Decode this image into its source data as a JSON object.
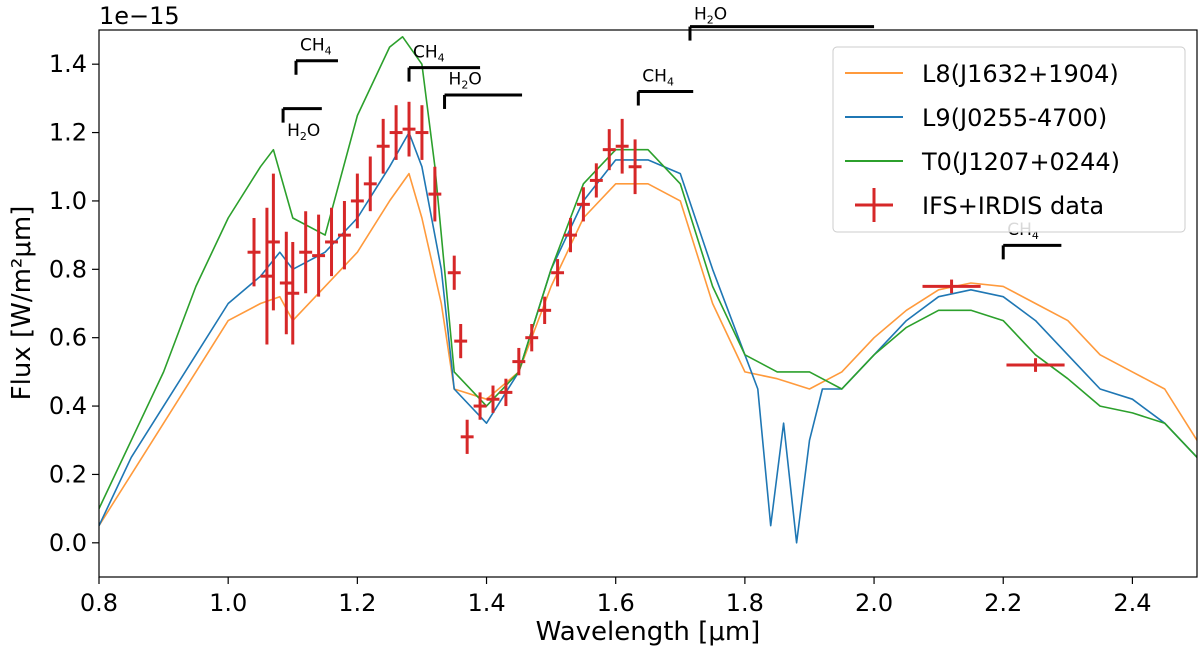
{
  "chart_data": {
    "type": "line",
    "title": "",
    "xlabel": "Wavelength [μm]",
    "ylabel": "Flux [W/m²μm]",
    "offset_text": "1e−15",
    "xlim": [
      0.8,
      2.5
    ],
    "ylim": [
      -0.1,
      1.5
    ],
    "xticks": [
      0.8,
      1.0,
      1.2,
      1.4,
      1.6,
      1.8,
      2.0,
      2.2,
      2.4
    ],
    "yticks": [
      0.0,
      0.2,
      0.4,
      0.6,
      0.8,
      1.0,
      1.2,
      1.4
    ],
    "legend_position": "top-right",
    "series": [
      {
        "name": "L8(J1632+1904)",
        "color": "#ff9a3c",
        "x": [
          0.8,
          0.85,
          0.9,
          0.95,
          1.0,
          1.05,
          1.08,
          1.1,
          1.15,
          1.2,
          1.25,
          1.28,
          1.3,
          1.33,
          1.35,
          1.4,
          1.45,
          1.5,
          1.55,
          1.6,
          1.65,
          1.7,
          1.75,
          1.8,
          1.85,
          1.9,
          1.95,
          2.0,
          2.05,
          2.1,
          2.15,
          2.2,
          2.25,
          2.3,
          2.35,
          2.4,
          2.45,
          2.5
        ],
        "y": [
          0.05,
          0.2,
          0.35,
          0.5,
          0.65,
          0.7,
          0.72,
          0.65,
          0.75,
          0.85,
          1.0,
          1.08,
          0.95,
          0.7,
          0.45,
          0.42,
          0.5,
          0.75,
          0.95,
          1.05,
          1.05,
          1.0,
          0.7,
          0.5,
          0.48,
          0.45,
          0.5,
          0.6,
          0.68,
          0.74,
          0.76,
          0.75,
          0.7,
          0.65,
          0.55,
          0.5,
          0.45,
          0.3
        ]
      },
      {
        "name": "L9(J0255-4700)",
        "color": "#1f77b4",
        "x": [
          0.8,
          0.85,
          0.9,
          0.95,
          1.0,
          1.05,
          1.08,
          1.1,
          1.15,
          1.2,
          1.25,
          1.28,
          1.3,
          1.33,
          1.35,
          1.4,
          1.45,
          1.5,
          1.55,
          1.6,
          1.65,
          1.7,
          1.75,
          1.8,
          1.82,
          1.84,
          1.86,
          1.88,
          1.9,
          1.92,
          1.95,
          2.0,
          2.05,
          2.1,
          2.15,
          2.2,
          2.25,
          2.3,
          2.35,
          2.4,
          2.45,
          2.5
        ],
        "y": [
          0.05,
          0.25,
          0.4,
          0.55,
          0.7,
          0.78,
          0.85,
          0.8,
          0.85,
          0.95,
          1.1,
          1.2,
          1.1,
          0.8,
          0.45,
          0.35,
          0.5,
          0.8,
          1.0,
          1.12,
          1.12,
          1.08,
          0.8,
          0.55,
          0.45,
          0.05,
          0.35,
          0.0,
          0.3,
          0.45,
          0.45,
          0.55,
          0.65,
          0.72,
          0.74,
          0.72,
          0.65,
          0.55,
          0.45,
          0.42,
          0.35,
          0.25
        ]
      },
      {
        "name": "T0(J1207+0244)",
        "color": "#2ca02c",
        "x": [
          0.8,
          0.85,
          0.9,
          0.95,
          1.0,
          1.05,
          1.07,
          1.1,
          1.15,
          1.2,
          1.25,
          1.27,
          1.3,
          1.32,
          1.35,
          1.4,
          1.45,
          1.5,
          1.55,
          1.6,
          1.65,
          1.7,
          1.75,
          1.8,
          1.85,
          1.9,
          1.95,
          2.0,
          2.05,
          2.1,
          2.15,
          2.2,
          2.25,
          2.3,
          2.35,
          2.4,
          2.45,
          2.5
        ],
        "y": [
          0.1,
          0.3,
          0.5,
          0.75,
          0.95,
          1.1,
          1.15,
          0.95,
          0.9,
          1.25,
          1.45,
          1.48,
          1.4,
          1.1,
          0.5,
          0.4,
          0.5,
          0.8,
          1.05,
          1.15,
          1.15,
          1.05,
          0.75,
          0.55,
          0.5,
          0.5,
          0.45,
          0.55,
          0.63,
          0.68,
          0.68,
          0.65,
          0.55,
          0.48,
          0.4,
          0.38,
          0.35,
          0.25
        ]
      }
    ],
    "errorbar_series": {
      "name": "IFS+IRDIS data",
      "color": "#d62728",
      "points": [
        {
          "x": 1.04,
          "y": 0.85,
          "xerr": 0.01,
          "yerr": 0.1
        },
        {
          "x": 1.06,
          "y": 0.78,
          "xerr": 0.01,
          "yerr": 0.2
        },
        {
          "x": 1.07,
          "y": 0.88,
          "xerr": 0.01,
          "yerr": 0.2
        },
        {
          "x": 1.09,
          "y": 0.76,
          "xerr": 0.01,
          "yerr": 0.15
        },
        {
          "x": 1.1,
          "y": 0.73,
          "xerr": 0.01,
          "yerr": 0.15
        },
        {
          "x": 1.12,
          "y": 0.85,
          "xerr": 0.01,
          "yerr": 0.12
        },
        {
          "x": 1.14,
          "y": 0.84,
          "xerr": 0.01,
          "yerr": 0.12
        },
        {
          "x": 1.16,
          "y": 0.88,
          "xerr": 0.01,
          "yerr": 0.1
        },
        {
          "x": 1.18,
          "y": 0.9,
          "xerr": 0.01,
          "yerr": 0.1
        },
        {
          "x": 1.2,
          "y": 1.0,
          "xerr": 0.01,
          "yerr": 0.08
        },
        {
          "x": 1.22,
          "y": 1.05,
          "xerr": 0.01,
          "yerr": 0.08
        },
        {
          "x": 1.24,
          "y": 1.16,
          "xerr": 0.01,
          "yerr": 0.08
        },
        {
          "x": 1.26,
          "y": 1.2,
          "xerr": 0.01,
          "yerr": 0.08
        },
        {
          "x": 1.28,
          "y": 1.21,
          "xerr": 0.01,
          "yerr": 0.08
        },
        {
          "x": 1.3,
          "y": 1.2,
          "xerr": 0.01,
          "yerr": 0.08
        },
        {
          "x": 1.32,
          "y": 1.02,
          "xerr": 0.01,
          "yerr": 0.08
        },
        {
          "x": 1.35,
          "y": 0.79,
          "xerr": 0.01,
          "yerr": 0.05
        },
        {
          "x": 1.36,
          "y": 0.59,
          "xerr": 0.01,
          "yerr": 0.05
        },
        {
          "x": 1.37,
          "y": 0.31,
          "xerr": 0.01,
          "yerr": 0.05
        },
        {
          "x": 1.39,
          "y": 0.4,
          "xerr": 0.01,
          "yerr": 0.04
        },
        {
          "x": 1.41,
          "y": 0.42,
          "xerr": 0.01,
          "yerr": 0.04
        },
        {
          "x": 1.43,
          "y": 0.44,
          "xerr": 0.01,
          "yerr": 0.04
        },
        {
          "x": 1.45,
          "y": 0.53,
          "xerr": 0.01,
          "yerr": 0.04
        },
        {
          "x": 1.47,
          "y": 0.6,
          "xerr": 0.01,
          "yerr": 0.04
        },
        {
          "x": 1.49,
          "y": 0.68,
          "xerr": 0.01,
          "yerr": 0.04
        },
        {
          "x": 1.51,
          "y": 0.79,
          "xerr": 0.01,
          "yerr": 0.04
        },
        {
          "x": 1.53,
          "y": 0.9,
          "xerr": 0.01,
          "yerr": 0.05
        },
        {
          "x": 1.55,
          "y": 0.99,
          "xerr": 0.01,
          "yerr": 0.05
        },
        {
          "x": 1.57,
          "y": 1.06,
          "xerr": 0.01,
          "yerr": 0.05
        },
        {
          "x": 1.59,
          "y": 1.15,
          "xerr": 0.01,
          "yerr": 0.06
        },
        {
          "x": 1.61,
          "y": 1.16,
          "xerr": 0.01,
          "yerr": 0.08
        },
        {
          "x": 1.63,
          "y": 1.1,
          "xerr": 0.01,
          "yerr": 0.08
        },
        {
          "x": 2.12,
          "y": 0.75,
          "xerr": 0.045,
          "yerr": 0.02
        },
        {
          "x": 2.25,
          "y": 0.52,
          "xerr": 0.045,
          "yerr": 0.02
        }
      ]
    },
    "annotations": [
      {
        "label_main": "H",
        "label_sub": "2",
        "label_tail": "O",
        "x0": 1.085,
        "x1": 1.145,
        "y": 1.27,
        "tick": "down",
        "label_y": 1.19
      },
      {
        "label_main": "CH",
        "label_sub": "4",
        "label_tail": "",
        "x0": 1.105,
        "x1": 1.17,
        "y": 1.41,
        "tick": "down",
        "label_y": 1.44
      },
      {
        "label_main": "CH",
        "label_sub": "4",
        "label_tail": "",
        "x0": 1.28,
        "x1": 1.39,
        "y": 1.39,
        "tick": "down",
        "label_y": 1.42
      },
      {
        "label_main": "H",
        "label_sub": "2",
        "label_tail": "O",
        "x0": 1.335,
        "x1": 1.455,
        "y": 1.31,
        "tick": "down",
        "label_y": 1.34
      },
      {
        "label_main": "CH",
        "label_sub": "4",
        "label_tail": "",
        "x0": 1.635,
        "x1": 1.72,
        "y": 1.32,
        "tick": "down",
        "label_y": 1.35
      },
      {
        "label_main": "H",
        "label_sub": "2",
        "label_tail": "O",
        "x0": 1.715,
        "x1": 2.0,
        "y": 1.51,
        "tick": "down",
        "label_y": 1.53
      },
      {
        "label_main": "CH",
        "label_sub": "4",
        "label_tail": "",
        "x0": 2.2,
        "x1": 2.29,
        "y": 0.87,
        "tick": "down",
        "label_y": 0.9
      }
    ]
  }
}
